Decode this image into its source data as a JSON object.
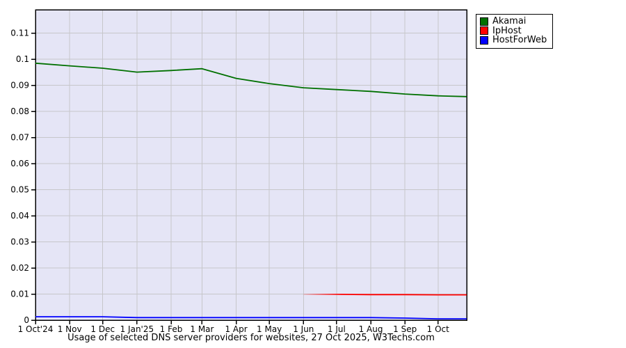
{
  "caption": "Usage of selected DNS server providers for websites, 27 Oct 2025, W3Techs.com",
  "legend": {
    "items": [
      {
        "label": "Akamai",
        "color": "#007000"
      },
      {
        "label": "IpHost",
        "color": "#ff0000"
      },
      {
        "label": "HostForWeb",
        "color": "#0000ff"
      }
    ]
  },
  "chart_data": {
    "type": "line",
    "title": "Usage of selected DNS server providers for websites, 27 Oct 2025, W3Techs.com",
    "xlabel": "",
    "ylabel": "",
    "x_unit": "days since 1 Oct 2024",
    "x_range_days": 391,
    "ylim": [
      0,
      0.119
    ],
    "grid": true,
    "legend_position": "top-right-outside",
    "colors": {
      "plot_bg": "#e5e5f6",
      "grid": "#c6c6ca",
      "axis": "#000000",
      "outer_bg": "#ffffff",
      "text": "#000000"
    },
    "y_ticks": [
      {
        "label": "0",
        "value": 0
      },
      {
        "label": "0.01",
        "value": 0.01
      },
      {
        "label": "0.02",
        "value": 0.02
      },
      {
        "label": "0.03",
        "value": 0.03
      },
      {
        "label": "0.04",
        "value": 0.04
      },
      {
        "label": "0.05",
        "value": 0.05
      },
      {
        "label": "0.06",
        "value": 0.06
      },
      {
        "label": "0.07",
        "value": 0.07
      },
      {
        "label": "0.08",
        "value": 0.08
      },
      {
        "label": "0.09",
        "value": 0.09
      },
      {
        "label": "0.1",
        "value": 0.1
      },
      {
        "label": "0.11",
        "value": 0.11
      }
    ],
    "x_ticks": [
      {
        "label": "1 Oct'24",
        "day": 0
      },
      {
        "label": "1 Nov",
        "day": 31
      },
      {
        "label": "1 Dec",
        "day": 61
      },
      {
        "label": "1 Jan'25",
        "day": 92
      },
      {
        "label": "1 Feb",
        "day": 123
      },
      {
        "label": "1 Mar",
        "day": 151
      },
      {
        "label": "1 Apr",
        "day": 182
      },
      {
        "label": "1 May",
        "day": 212
      },
      {
        "label": "1 Jun",
        "day": 243
      },
      {
        "label": "1 Jul",
        "day": 273
      },
      {
        "label": "1 Aug",
        "day": 304
      },
      {
        "label": "1 Sep",
        "day": 335
      },
      {
        "label": "1 Oct",
        "day": 365
      }
    ],
    "series": [
      {
        "name": "Akamai",
        "color": "#007000",
        "points": [
          [
            0,
            0.0985
          ],
          [
            31,
            0.0975
          ],
          [
            61,
            0.0966
          ],
          [
            92,
            0.0951
          ],
          [
            123,
            0.0957
          ],
          [
            151,
            0.0964
          ],
          [
            182,
            0.0927
          ],
          [
            212,
            0.0907
          ],
          [
            243,
            0.0891
          ],
          [
            273,
            0.0884
          ],
          [
            304,
            0.0877
          ],
          [
            335,
            0.0867
          ],
          [
            365,
            0.086
          ],
          [
            391,
            0.0857
          ]
        ]
      },
      {
        "name": "IpHost",
        "color": "#ff0000",
        "fade_in": true,
        "points": [
          [
            243,
            0.0099
          ],
          [
            273,
            0.0099
          ],
          [
            304,
            0.0098
          ],
          [
            335,
            0.0098
          ],
          [
            365,
            0.0097
          ],
          [
            391,
            0.0097
          ]
        ]
      },
      {
        "name": "HostForWeb",
        "color": "#0000ff",
        "points": [
          [
            0,
            0.0013
          ],
          [
            31,
            0.0013
          ],
          [
            61,
            0.0013
          ],
          [
            92,
            0.001
          ],
          [
            123,
            0.001
          ],
          [
            151,
            0.001
          ],
          [
            182,
            0.001
          ],
          [
            212,
            0.001
          ],
          [
            243,
            0.001
          ],
          [
            273,
            0.001
          ],
          [
            304,
            0.001
          ],
          [
            335,
            0.0008
          ],
          [
            365,
            0.0005
          ],
          [
            391,
            0.0005
          ]
        ]
      }
    ]
  }
}
